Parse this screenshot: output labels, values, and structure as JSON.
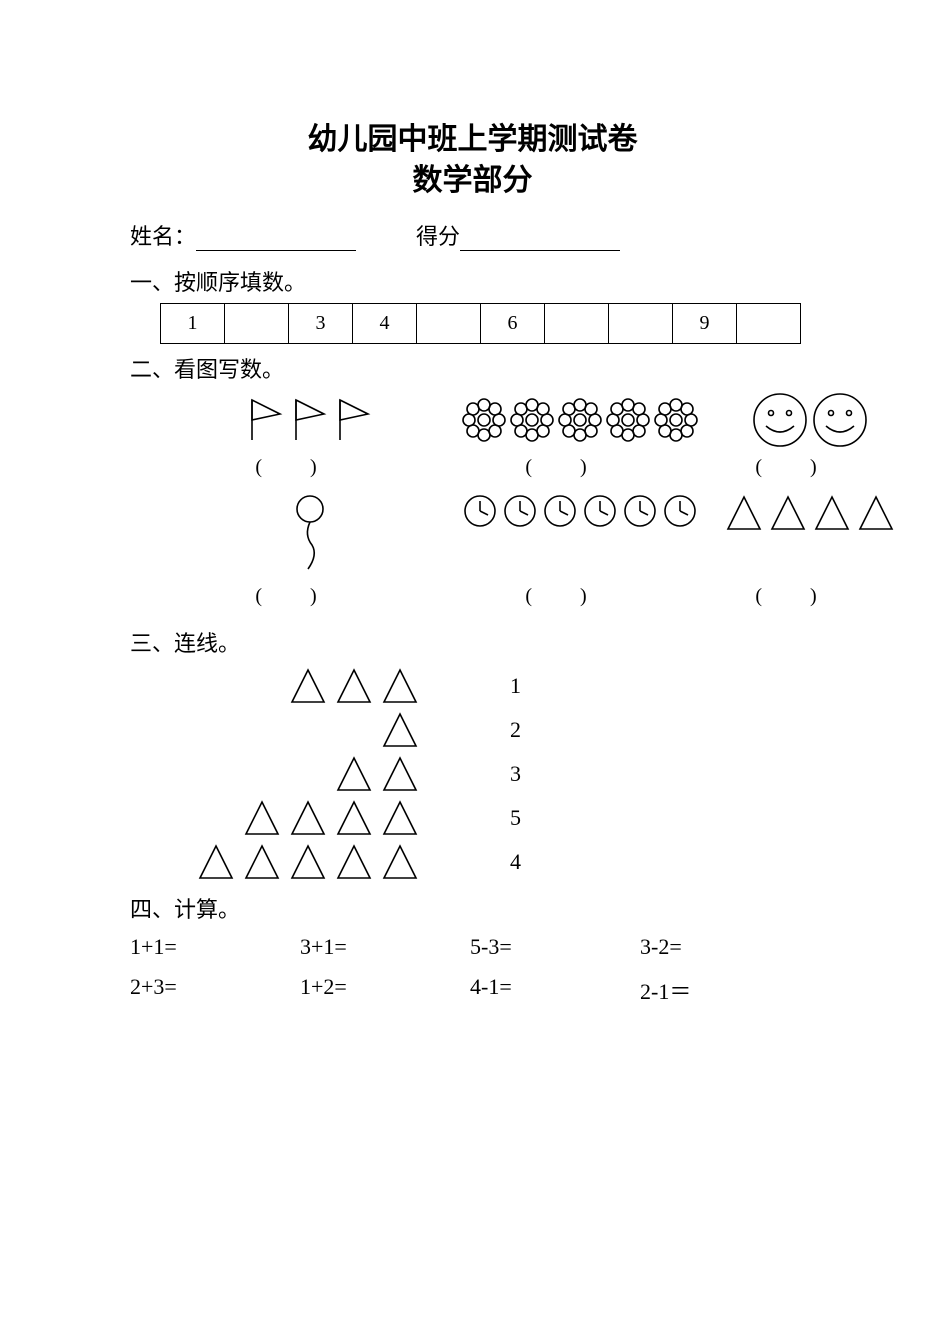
{
  "title": {
    "line1": "幼儿园中班上学期测试卷",
    "line2": "数学部分"
  },
  "info": {
    "name_label": "姓名：",
    "score_label": "得分"
  },
  "s1": {
    "heading": "一、按顺序填数。",
    "cells": [
      "1",
      "",
      "3",
      "4",
      "",
      "6",
      "",
      "",
      "9",
      ""
    ]
  },
  "s2": {
    "heading": "二、看图写数。",
    "row1": [
      {
        "icon": "flag",
        "count": 3
      },
      {
        "icon": "flower",
        "count": 5
      },
      {
        "icon": "smiley",
        "count": 2
      }
    ],
    "row2": [
      {
        "icon": "balloon",
        "count": 1
      },
      {
        "icon": "clock",
        "count": 6
      },
      {
        "icon": "triangle",
        "count": 4
      }
    ]
  },
  "s3": {
    "heading": "三、连线。",
    "rows": [
      {
        "triangles": 3,
        "number": "1"
      },
      {
        "triangles": 1,
        "number": "2"
      },
      {
        "triangles": 2,
        "number": "3"
      },
      {
        "triangles": 4,
        "number": "5"
      },
      {
        "triangles": 5,
        "number": "4"
      }
    ]
  },
  "s4": {
    "heading": "四、计算。",
    "problems": [
      "1+1=",
      "3+1=",
      "5-3=",
      "3-2=",
      "2+3=",
      "1+2=",
      "4-1=",
      "2-1＝"
    ]
  }
}
